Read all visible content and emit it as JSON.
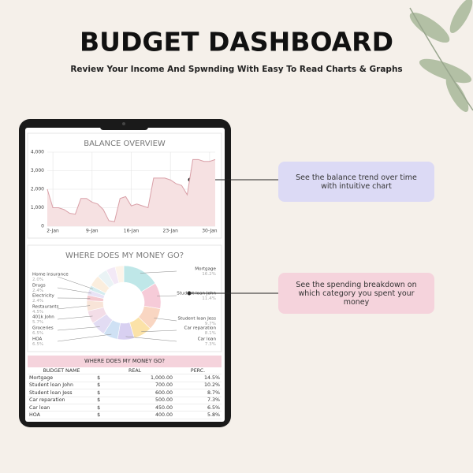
{
  "header": {
    "title": "BUDGET DASHBOARD",
    "subtitle": "Review Your Income And Spwnding With Easy To Read Charts & Graphs"
  },
  "callouts": [
    {
      "text": "See the balance trend over time with intuitive chart",
      "color": "#dcdaf5"
    },
    {
      "text": "See the spending breakdown on which category you spent  your money",
      "color": "#f5d3dc"
    }
  ],
  "chart_data": [
    {
      "type": "area",
      "title": "BALANCE OVERVIEW",
      "x": [
        1,
        2,
        3,
        4,
        5,
        6,
        7,
        8,
        9,
        10,
        11,
        12,
        13,
        14,
        15,
        16,
        17,
        18,
        19,
        20,
        21,
        22,
        23,
        24,
        25,
        26,
        27,
        28,
        29,
        30,
        31
      ],
      "values": [
        2000,
        1000,
        1000,
        900,
        700,
        650,
        1500,
        1500,
        1300,
        1200,
        900,
        300,
        250,
        1500,
        1600,
        1100,
        1200,
        1100,
        1000,
        2600,
        2600,
        2600,
        2500,
        2300,
        2200,
        1700,
        3600,
        3600,
        3500,
        3500,
        3600
      ],
      "color": "#d9a0a8",
      "fill": "#f6e1e2",
      "xlim": [
        1,
        31
      ],
      "xticks": [
        {
          "value": 2,
          "label": "2-Jan"
        },
        {
          "value": 9,
          "label": "9-Jan"
        },
        {
          "value": 16,
          "label": "16-Jan"
        },
        {
          "value": 23,
          "label": "23-Jan"
        },
        {
          "value": 30,
          "label": "30-Jan"
        }
      ],
      "ylim": [
        0,
        4000
      ],
      "yticks": [
        0,
        {
          "value": 1000,
          "label": "1,000"
        },
        {
          "value": 2000,
          "label": "2,000"
        },
        {
          "value": 3000,
          "label": "3,000"
        },
        {
          "value": 4000,
          "label": "4,000"
        }
      ],
      "grid": true
    },
    {
      "type": "donut",
      "title": "WHERE DOES MY MONEY GO?",
      "categories": [
        "Mortgage",
        "Student loan John",
        "Student loan Jess",
        "Car reparation",
        "Car loan",
        "HOA",
        "Groceries",
        "401k John",
        "Restaurants",
        "Electricity",
        "Drugs",
        "Home insurance",
        null,
        null,
        null,
        null
      ],
      "values": [
        16.2,
        11.4,
        9.7,
        8.1,
        7.3,
        6.5,
        6.5,
        5.7,
        4.5,
        2.4,
        2.4,
        2.0,
        5.0,
        4.5,
        4.0,
        3.8
      ],
      "value_labels": [
        "16.2%",
        "11.4%",
        "9.7%",
        "8.1%",
        "7.3%",
        "6.5%",
        "6.5%",
        "5.7%",
        "4.5%",
        "2.4%",
        "2.4%",
        "2.0%",
        null,
        null,
        null,
        null
      ],
      "colors": [
        "#bfe7e8",
        "#f6cbd8",
        "#f9d6c2",
        "#fbe2a8",
        "#d8d0f1",
        "#cfe1f4",
        "#e2dcf3",
        "#f3dde7",
        "#f8e4d8",
        "#f4c9cf",
        "#e8e3f6",
        "#d4ecef",
        "#fbeede",
        "#eaf3f5",
        "#f3e9f6",
        "#fdf4ea"
      ]
    }
  ],
  "table": {
    "title": "WHERE DOES MY MONEY GO?",
    "columns": [
      "BUDGET NAME",
      "REAL",
      "PERC."
    ],
    "rows": [
      [
        "Mortgage",
        "$",
        "1,000.00",
        "14.5%"
      ],
      [
        "Student loan John",
        "$",
        "700.00",
        "10.2%"
      ],
      [
        "Student loan Jess",
        "$",
        "600.00",
        "8.7%"
      ],
      [
        "Car reparation",
        "$",
        "500.00",
        "7.3%"
      ],
      [
        "Car loan",
        "$",
        "450.00",
        "6.5%"
      ],
      [
        "HOA",
        "$",
        "400.00",
        "5.8%"
      ]
    ]
  }
}
